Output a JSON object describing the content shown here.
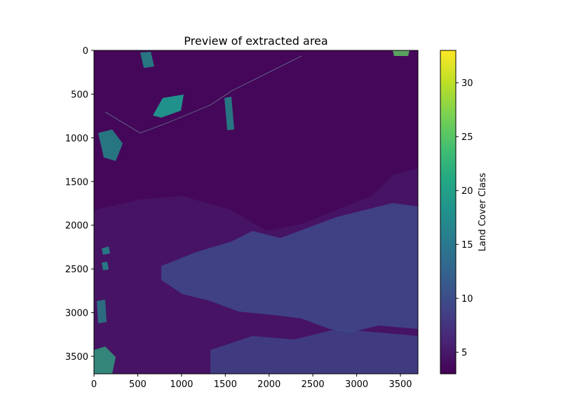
{
  "chart_data": {
    "type": "heatmap",
    "title": "Preview of extracted area",
    "xlabel": "",
    "ylabel": "",
    "xlim": [
      0,
      3700
    ],
    "ylim": [
      3700,
      0
    ],
    "x_ticks": [
      0,
      500,
      1000,
      1500,
      2000,
      2500,
      3000,
      3500
    ],
    "y_ticks": [
      0,
      500,
      1000,
      1500,
      2000,
      2500,
      3000,
      3500
    ],
    "colorbar": {
      "label": "Land Cover Class",
      "range": [
        3,
        33
      ],
      "ticks": [
        5,
        10,
        15,
        20,
        25,
        30
      ],
      "colormap": "viridis"
    },
    "colors": {
      "background_class": "#46085c",
      "low_class": "#440154",
      "mid_class": "#3b528b",
      "upper_class": "#21918c",
      "high_class": "#5ec962",
      "top_class": "#fde725"
    }
  }
}
